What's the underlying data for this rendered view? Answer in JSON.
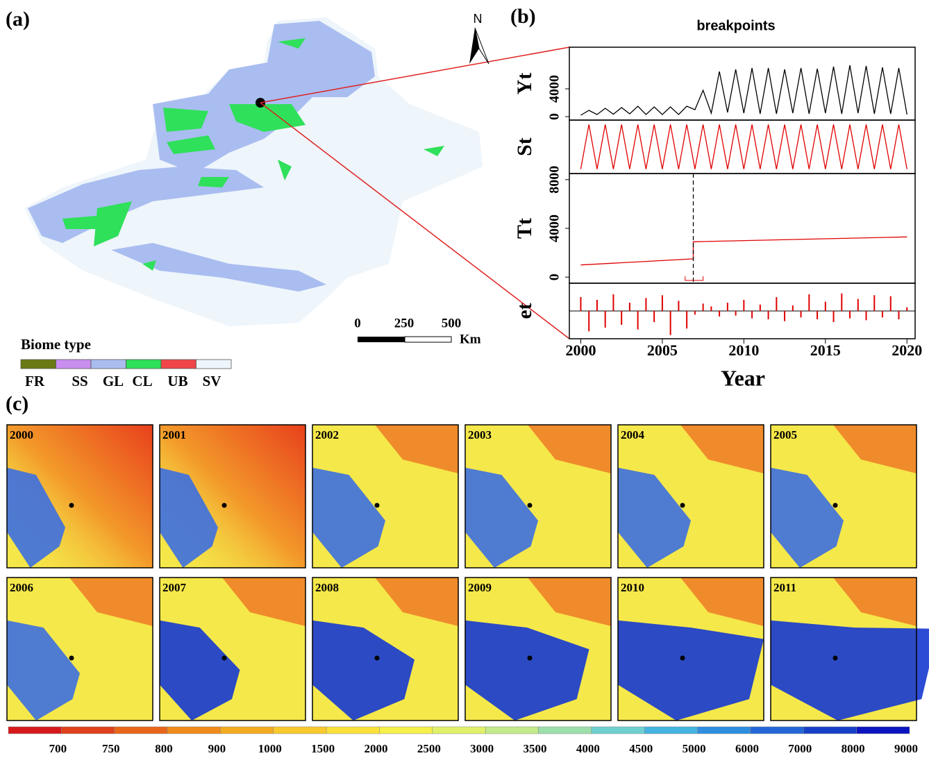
{
  "panel_a": {
    "label": "(a)",
    "north": "N",
    "scale_labels": [
      "0",
      "250",
      "500"
    ],
    "scale_unit": "Km",
    "legend": {
      "title": "Biome type",
      "items": [
        {
          "name": "FR",
          "color": "#6b7a12"
        },
        {
          "name": "SS",
          "color": "#c98ef0"
        },
        {
          "name": "GL",
          "color": "#a9bdf0"
        },
        {
          "name": "CL",
          "color": "#2fe05a"
        },
        {
          "name": "UB",
          "color": "#f0464a"
        },
        {
          "name": "SV",
          "color": "#eef5fb"
        }
      ]
    }
  },
  "chart_data": {
    "type": "line",
    "label": "(b)",
    "title": "breakpoints",
    "x_label": "Year",
    "xlim": [
      1999.3,
      2020.5
    ],
    "xticks": [
      2000,
      2005,
      2010,
      2015,
      2020
    ],
    "x": [
      2000,
      2000.5,
      2001,
      2001.5,
      2002,
      2002.5,
      2003,
      2003.5,
      2004,
      2004.5,
      2005,
      2005.5,
      2006,
      2006.5,
      2007,
      2007.5,
      2008,
      2008.5,
      2009,
      2009.5,
      2010,
      2010.5,
      2011,
      2011.5,
      2012,
      2012.5,
      2013,
      2013.5,
      2014,
      2014.5,
      2015,
      2015.5,
      2016,
      2016.5,
      2017,
      2017.5,
      2018,
      2018.5,
      2019,
      2019.5,
      2020
    ],
    "breakpoint": 2006.9,
    "breakpoint_ci": [
      2006.4,
      2007.5
    ],
    "series": [
      {
        "name": "Yt",
        "color": "#000000",
        "ylim": [
          -500,
          10000
        ],
        "yticks": [
          0,
          4000
        ],
        "values": [
          200,
          900,
          300,
          1200,
          350,
          1300,
          400,
          1500,
          300,
          1400,
          300,
          1400,
          300,
          1500,
          1000,
          3800,
          500,
          6500,
          600,
          6800,
          500,
          7000,
          400,
          7000,
          400,
          6800,
          500,
          7000,
          400,
          6900,
          500,
          7200,
          400,
          7400,
          500,
          7300,
          400,
          7100,
          400,
          7000,
          300
        ]
      },
      {
        "name": "St",
        "color": "#e00000",
        "ylim": [
          -3000,
          3000
        ],
        "values": [
          -2500,
          2500,
          -2500,
          2500,
          -2500,
          2500,
          -2500,
          2500,
          -2500,
          2500,
          -2500,
          2500,
          -2500,
          2500,
          -2500,
          2500,
          -2500,
          2500,
          -2500,
          2500,
          -2500,
          2500,
          -2500,
          2500,
          -2500,
          2500,
          -2500,
          2500,
          -2500,
          2500,
          -2500,
          2500,
          -2500,
          2500,
          -2500,
          2500,
          -2500,
          2500,
          -2500,
          2500,
          -2500
        ]
      },
      {
        "name": "Tt",
        "color": "#e00000",
        "ylim": [
          -500,
          8500
        ],
        "yticks": [
          0,
          4000,
          8000
        ],
        "x": [
          2000,
          2006.9,
          2006.9,
          2020
        ],
        "values": [
          1000,
          1500,
          2900,
          3300
        ]
      },
      {
        "name": "et",
        "color": "#e00000",
        "ylim": [
          -3000,
          3000
        ],
        "values": [
          1500,
          -2200,
          1200,
          -1800,
          1800,
          -1500,
          900,
          -2000,
          1400,
          -1200,
          1700,
          -2600,
          1100,
          -1900,
          -400,
          800,
          500,
          -600,
          900,
          -500,
          1200,
          -800,
          700,
          -900,
          1500,
          -1100,
          600,
          -700,
          1800,
          -900,
          1000,
          -1200,
          1900,
          -800,
          1300,
          -1000,
          1700,
          -700,
          1600,
          -900,
          400
        ]
      }
    ]
  },
  "panel_c": {
    "label": "(c)",
    "years": [
      "2000",
      "2001",
      "2002",
      "2003",
      "2004",
      "2005",
      "2006",
      "2007",
      "2008",
      "2009",
      "2010",
      "2011"
    ],
    "colorbar": {
      "colors": [
        "#d7191c",
        "#e0401a",
        "#e8651a",
        "#ef8a1b",
        "#f4ab22",
        "#f8c92c",
        "#fbe23a",
        "#f5f04a",
        "#e0f068",
        "#c3ea8a",
        "#9ddfaa",
        "#6fd0d0",
        "#44b4e0",
        "#2e8ee0",
        "#2266d8",
        "#1640c8",
        "#0a14c0"
      ],
      "labels": [
        "700",
        "750",
        "800",
        "900",
        "1000",
        "1500",
        "2000",
        "2500",
        "3000",
        "3500",
        "4000",
        "4500",
        "5000",
        "6000",
        "7000",
        "8000",
        "9000"
      ]
    }
  }
}
